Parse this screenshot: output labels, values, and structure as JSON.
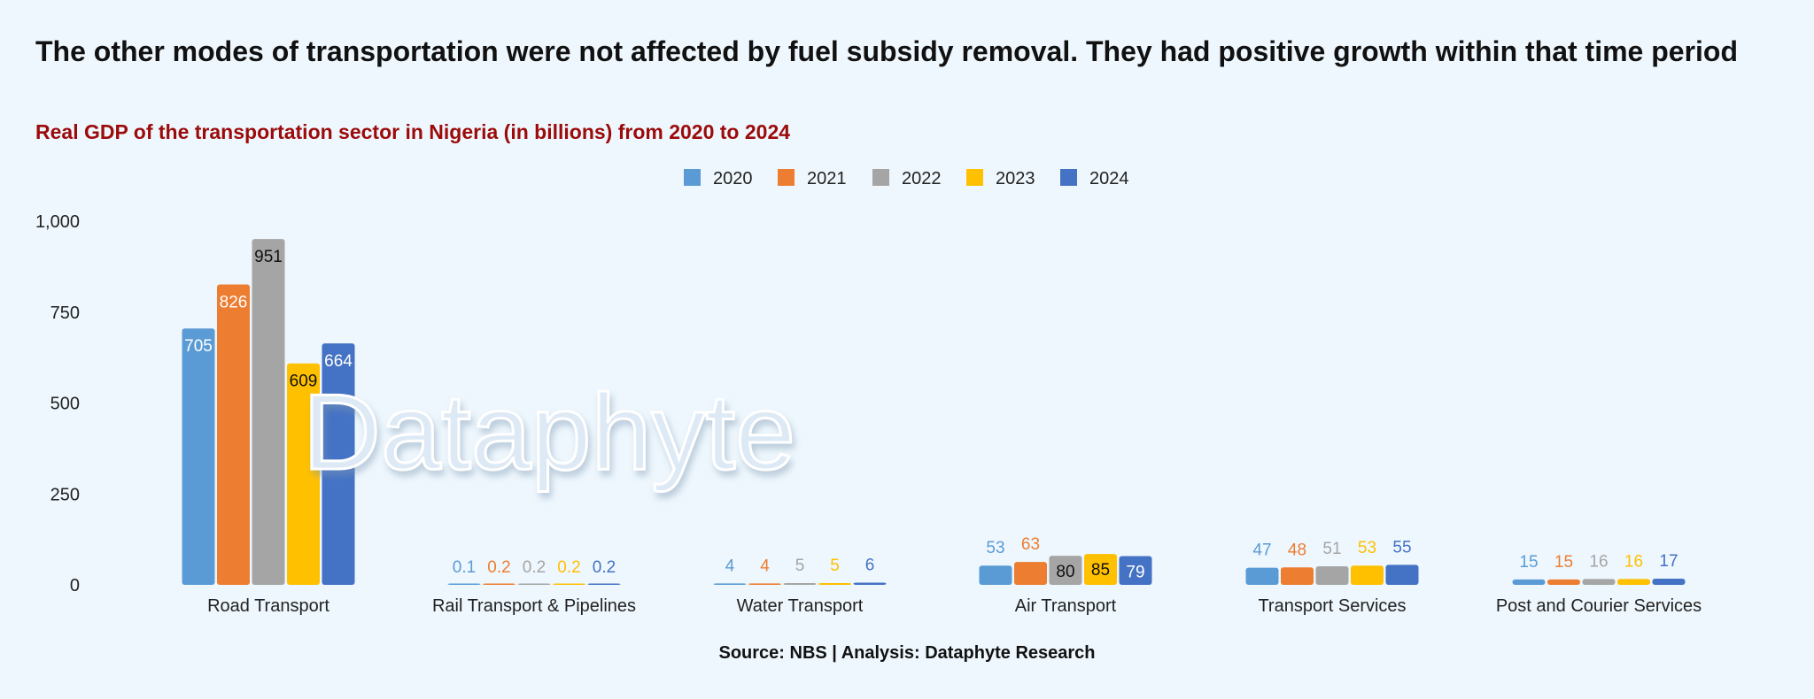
{
  "title": "The other modes of transportation were not affected by fuel subsidy removal. They had positive growth within that time period",
  "subtitle": "Real GDP of the transportation sector in Nigeria (in billions) from 2020 to 2024",
  "source": "Source: NBS | Analysis: Dataphyte Research",
  "watermark": "Dataphyte",
  "chart_data": {
    "type": "bar",
    "categories": [
      "Road Transport",
      "Rail Transport & Pipelines",
      "Water Transport",
      "Air Transport",
      "Transport Services",
      "Post and Courier Services"
    ],
    "series": [
      {
        "name": "2020",
        "color": "#5b9bd5",
        "values": [
          705,
          0.1,
          4,
          53,
          47,
          15
        ],
        "labels": [
          "705",
          "0.1",
          "4",
          "53",
          "47",
          "15"
        ]
      },
      {
        "name": "2021",
        "color": "#ed7d31",
        "values": [
          826,
          0.2,
          4,
          63,
          48,
          15
        ],
        "labels": [
          "826",
          "0.2",
          "4",
          "63",
          "48",
          "15"
        ]
      },
      {
        "name": "2022",
        "color": "#a5a5a5",
        "values": [
          951,
          0.2,
          5,
          80,
          51,
          16
        ],
        "labels": [
          "951",
          "0.2",
          "5",
          "80",
          "51",
          "16"
        ]
      },
      {
        "name": "2023",
        "color": "#ffc000",
        "values": [
          609,
          0.2,
          5,
          85,
          53,
          16
        ],
        "labels": [
          "609",
          "0.2",
          "5",
          "85",
          "53",
          "16"
        ]
      },
      {
        "name": "2024",
        "color": "#4472c4",
        "values": [
          664,
          0.2,
          6,
          79,
          55,
          17
        ],
        "labels": [
          "664",
          "0.2",
          "6",
          "79",
          "55",
          "17"
        ]
      }
    ],
    "yticks": [
      "0",
      "250",
      "500",
      "750",
      "1,000"
    ],
    "ytick_values": [
      0,
      250,
      500,
      750,
      1000
    ],
    "ylim": [
      0,
      1000
    ],
    "legend_position": "top-center",
    "grid": false
  }
}
